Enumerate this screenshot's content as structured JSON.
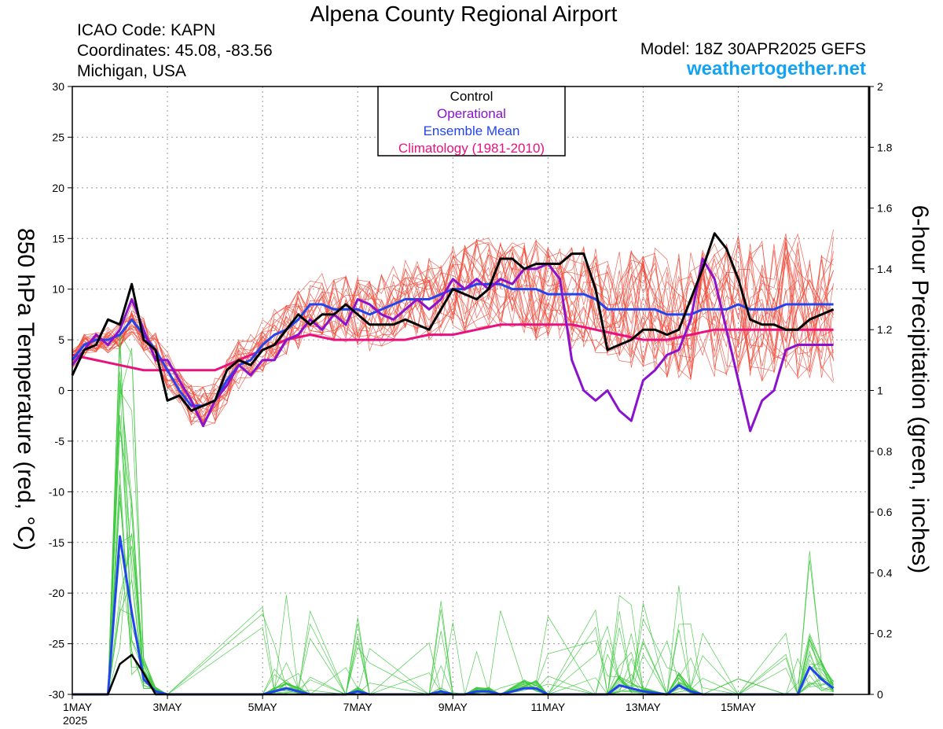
{
  "header": {
    "title": "Alpena County Regional Airport",
    "icao": "ICAO Code: KAPN",
    "coords": "Coordinates: 45.08, -83.56",
    "state": "Michigan, USA",
    "model": "Model: 18Z 30APR2025 GEFS",
    "brand": "weathertogether.net"
  },
  "chart_data": {
    "type": "line",
    "ylabel_left": "850 hPa Temperature (red, °C)",
    "ylabel_right": "6-hour Precipitation (green, inches)",
    "ylim_left": [
      -30,
      30
    ],
    "ylim_right": [
      0,
      2
    ],
    "yticks_left": [
      30,
      25,
      20,
      15,
      10,
      5,
      0,
      -5,
      -10,
      -15,
      -20,
      -25,
      -30
    ],
    "yticks_right": [
      "2",
      "1.8",
      "1.6",
      "1.4",
      "1.2",
      "1",
      "0.8",
      "0.6",
      "0.4",
      "0.2",
      "0"
    ],
    "xlim_days": [
      0,
      16.75
    ],
    "xticks": [
      {
        "label": "1MAY",
        "day": 0
      },
      {
        "label": "3MAY",
        "day": 2
      },
      {
        "label": "5MAY",
        "day": 4
      },
      {
        "label": "7MAY",
        "day": 6
      },
      {
        "label": "9MAY",
        "day": 8
      },
      {
        "label": "11MAY",
        "day": 10
      },
      {
        "label": "13MAY",
        "day": 12
      },
      {
        "label": "15MAY",
        "day": 14
      }
    ],
    "year_label": "2025",
    "grid": true,
    "legend": {
      "position": "top-center",
      "items": [
        {
          "label": "Control",
          "color": "#000000"
        },
        {
          "label": "Operational",
          "color": "#8a12cc"
        },
        {
          "label": "Ensemble Mean",
          "color": "#2244ee"
        },
        {
          "label": "Climatology (1981-2010)",
          "color": "#e8127e"
        }
      ]
    },
    "series_colors": {
      "member_temp": "#f04a3a",
      "member_precip": "#3cc83c",
      "control": "#000000",
      "operational": "#8a12cc",
      "mean": "#2244ee",
      "climatology": "#e8127e"
    },
    "temperature": {
      "control": [
        [
          0,
          1.5
        ],
        [
          0.25,
          4
        ],
        [
          0.5,
          4.5
        ],
        [
          0.75,
          7
        ],
        [
          1,
          6.5
        ],
        [
          1.25,
          10.5
        ],
        [
          1.5,
          5
        ],
        [
          1.75,
          4
        ],
        [
          2,
          -1
        ],
        [
          2.25,
          -0.5
        ],
        [
          2.5,
          -2
        ],
        [
          2.75,
          -1.5
        ],
        [
          3,
          -1
        ],
        [
          3.25,
          2
        ],
        [
          3.5,
          3
        ],
        [
          3.75,
          2.5
        ],
        [
          4,
          4
        ],
        [
          4.25,
          4.5
        ],
        [
          4.5,
          6
        ],
        [
          4.75,
          7.5
        ],
        [
          5,
          6.5
        ],
        [
          5.25,
          7.5
        ],
        [
          5.5,
          7.5
        ],
        [
          5.75,
          8.5
        ],
        [
          6,
          7.5
        ],
        [
          6.25,
          6.5
        ],
        [
          6.5,
          6.5
        ],
        [
          6.75,
          6.5
        ],
        [
          7,
          7
        ],
        [
          7.25,
          6.5
        ],
        [
          7.5,
          6
        ],
        [
          7.75,
          8
        ],
        [
          8,
          10
        ],
        [
          8.25,
          9.5
        ],
        [
          8.5,
          9
        ],
        [
          8.75,
          10
        ],
        [
          9,
          13
        ],
        [
          9.25,
          13
        ],
        [
          9.5,
          12
        ],
        [
          9.75,
          12.5
        ],
        [
          10,
          12.5
        ],
        [
          10.25,
          12.5
        ],
        [
          10.5,
          13.5
        ],
        [
          10.75,
          13.5
        ],
        [
          11,
          10
        ],
        [
          11.25,
          4
        ],
        [
          11.5,
          4.5
        ],
        [
          11.75,
          5
        ],
        [
          12,
          6
        ],
        [
          12.25,
          6
        ],
        [
          12.5,
          5.5
        ],
        [
          12.75,
          6
        ],
        [
          13,
          9
        ],
        [
          13.25,
          12
        ],
        [
          13.5,
          15.5
        ],
        [
          13.75,
          14
        ],
        [
          14,
          11
        ],
        [
          14.25,
          7
        ],
        [
          14.5,
          6.5
        ],
        [
          14.75,
          6.5
        ],
        [
          15,
          6
        ],
        [
          15.25,
          6
        ],
        [
          15.5,
          7
        ],
        [
          15.75,
          7.5
        ],
        [
          16,
          8
        ]
      ],
      "operational": [
        [
          0,
          2.5
        ],
        [
          0.25,
          4
        ],
        [
          0.5,
          5.5
        ],
        [
          0.75,
          4.5
        ],
        [
          1,
          6
        ],
        [
          1.25,
          9
        ],
        [
          1.5,
          6
        ],
        [
          1.75,
          3
        ],
        [
          2,
          3
        ],
        [
          2.25,
          1
        ],
        [
          2.5,
          -1
        ],
        [
          2.75,
          -3.5
        ],
        [
          3,
          -1
        ],
        [
          3.25,
          0.5
        ],
        [
          3.5,
          2.5
        ],
        [
          3.75,
          1.5
        ],
        [
          4,
          3
        ],
        [
          4.25,
          3
        ],
        [
          4.5,
          5
        ],
        [
          4.75,
          5.5
        ],
        [
          5,
          7
        ],
        [
          5.25,
          6
        ],
        [
          5.5,
          7.5
        ],
        [
          5.75,
          6.5
        ],
        [
          6,
          9
        ],
        [
          6.25,
          8.5
        ],
        [
          6.5,
          7.5
        ],
        [
          6.75,
          7
        ],
        [
          7,
          8
        ],
        [
          7.25,
          9
        ],
        [
          7.5,
          8
        ],
        [
          7.75,
          9
        ],
        [
          8,
          11
        ],
        [
          8.25,
          10
        ],
        [
          8.5,
          11
        ],
        [
          8.75,
          10
        ],
        [
          9,
          11
        ],
        [
          9.25,
          10.5
        ],
        [
          9.5,
          12
        ],
        [
          9.75,
          12
        ],
        [
          10,
          12.5
        ],
        [
          10.25,
          11
        ],
        [
          10.5,
          3
        ],
        [
          10.75,
          0
        ],
        [
          11,
          -1
        ],
        [
          11.25,
          0
        ],
        [
          11.5,
          -2
        ],
        [
          11.75,
          -3
        ],
        [
          12,
          1
        ],
        [
          12.25,
          2
        ],
        [
          12.5,
          3.5
        ],
        [
          12.75,
          4
        ],
        [
          13,
          7
        ],
        [
          13.25,
          13
        ],
        [
          13.5,
          11
        ],
        [
          13.75,
          6
        ],
        [
          14,
          1
        ],
        [
          14.25,
          -4
        ],
        [
          14.5,
          -1
        ],
        [
          14.75,
          0
        ],
        [
          15,
          4
        ],
        [
          15.25,
          4.5
        ],
        [
          15.5,
          4.5
        ],
        [
          15.75,
          4.5
        ],
        [
          16,
          4.5
        ]
      ],
      "mean": [
        [
          0,
          3
        ],
        [
          0.25,
          4.5
        ],
        [
          0.5,
          5
        ],
        [
          0.75,
          5
        ],
        [
          1,
          5.5
        ],
        [
          1.25,
          7
        ],
        [
          1.5,
          5.5
        ],
        [
          1.75,
          4
        ],
        [
          2,
          2
        ],
        [
          2.25,
          0
        ],
        [
          2.5,
          -1.5
        ],
        [
          2.75,
          -1.5
        ],
        [
          3,
          -1
        ],
        [
          3.25,
          1
        ],
        [
          3.5,
          2.5
        ],
        [
          3.75,
          3
        ],
        [
          4,
          4.5
        ],
        [
          4.25,
          5.5
        ],
        [
          4.5,
          6
        ],
        [
          4.75,
          7
        ],
        [
          5,
          8.5
        ],
        [
          5.25,
          8.5
        ],
        [
          5.5,
          8
        ],
        [
          5.75,
          8
        ],
        [
          6,
          8
        ],
        [
          6.25,
          7.5
        ],
        [
          6.5,
          8
        ],
        [
          6.75,
          8.5
        ],
        [
          7,
          9
        ],
        [
          7.25,
          9
        ],
        [
          7.5,
          9
        ],
        [
          7.75,
          9.5
        ],
        [
          8,
          10
        ],
        [
          8.25,
          10
        ],
        [
          8.5,
          10.5
        ],
        [
          8.75,
          10.5
        ],
        [
          9,
          10.5
        ],
        [
          9.25,
          10
        ],
        [
          9.5,
          10
        ],
        [
          9.75,
          10
        ],
        [
          10,
          9.5
        ],
        [
          10.25,
          9.5
        ],
        [
          10.5,
          9.5
        ],
        [
          10.75,
          9.5
        ],
        [
          11,
          9
        ],
        [
          11.25,
          8
        ],
        [
          11.5,
          8
        ],
        [
          11.75,
          8
        ],
        [
          12,
          8
        ],
        [
          12.25,
          8
        ],
        [
          12.5,
          7.5
        ],
        [
          12.75,
          7.5
        ],
        [
          13,
          7.5
        ],
        [
          13.25,
          8
        ],
        [
          13.5,
          8
        ],
        [
          13.75,
          8
        ],
        [
          14,
          8.5
        ],
        [
          14.25,
          8
        ],
        [
          14.5,
          8
        ],
        [
          14.75,
          8
        ],
        [
          15,
          8.5
        ],
        [
          15.25,
          8.5
        ],
        [
          15.5,
          8.5
        ],
        [
          15.75,
          8.5
        ],
        [
          16,
          8.5
        ]
      ],
      "climatology": [
        [
          0,
          3.5
        ],
        [
          0.5,
          3
        ],
        [
          1,
          2.5
        ],
        [
          1.5,
          2
        ],
        [
          2,
          2
        ],
        [
          2.5,
          2
        ],
        [
          3,
          2
        ],
        [
          3.5,
          3
        ],
        [
          4,
          4
        ],
        [
          4.5,
          5
        ],
        [
          5,
          5.5
        ],
        [
          5.5,
          5
        ],
        [
          6,
          5
        ],
        [
          6.5,
          5
        ],
        [
          7,
          5
        ],
        [
          7.5,
          5.5
        ],
        [
          8,
          5.5
        ],
        [
          8.5,
          6
        ],
        [
          9,
          6.5
        ],
        [
          9.5,
          6.5
        ],
        [
          10,
          6.5
        ],
        [
          10.5,
          6.5
        ],
        [
          11,
          6
        ],
        [
          11.5,
          5.5
        ],
        [
          12,
          5
        ],
        [
          12.5,
          5
        ],
        [
          13,
          5.5
        ],
        [
          13.5,
          6
        ],
        [
          14,
          6
        ],
        [
          14.5,
          6
        ],
        [
          15,
          6
        ],
        [
          15.5,
          6
        ],
        [
          16,
          6
        ]
      ]
    },
    "precipitation": {
      "control": [
        [
          0,
          0
        ],
        [
          0.75,
          0
        ],
        [
          1,
          0.1
        ],
        [
          1.25,
          0.13
        ],
        [
          1.5,
          0.07
        ],
        [
          1.75,
          0
        ],
        [
          16,
          0
        ]
      ],
      "mean": [
        [
          0,
          0
        ],
        [
          0.75,
          0
        ],
        [
          1,
          0.52
        ],
        [
          1.25,
          0.27
        ],
        [
          1.5,
          0.05
        ],
        [
          1.75,
          0.01
        ],
        [
          2,
          0
        ],
        [
          4,
          0
        ],
        [
          4.25,
          0.01
        ],
        [
          4.5,
          0.02
        ],
        [
          4.75,
          0.01
        ],
        [
          5,
          0
        ],
        [
          5.75,
          0
        ],
        [
          6,
          0.01
        ],
        [
          6.25,
          0
        ],
        [
          7.5,
          0
        ],
        [
          7.75,
          0.01
        ],
        [
          8,
          0
        ],
        [
          8.25,
          0
        ],
        [
          8.5,
          0.01
        ],
        [
          8.75,
          0.01
        ],
        [
          9,
          0
        ],
        [
          9.5,
          0.02
        ],
        [
          9.75,
          0.02
        ],
        [
          10,
          0
        ],
        [
          11,
          0
        ],
        [
          11.25,
          0
        ],
        [
          11.5,
          0.03
        ],
        [
          11.75,
          0.02
        ],
        [
          12,
          0.01
        ],
        [
          12.5,
          0
        ],
        [
          12.75,
          0.03
        ],
        [
          13,
          0.01
        ],
        [
          13.25,
          0
        ],
        [
          14,
          0
        ],
        [
          15,
          0
        ],
        [
          15.25,
          0
        ],
        [
          15.5,
          0.09
        ],
        [
          15.75,
          0.05
        ],
        [
          16,
          0.02
        ]
      ],
      "operational": [
        [
          0,
          0
        ],
        [
          16,
          0
        ]
      ]
    }
  }
}
